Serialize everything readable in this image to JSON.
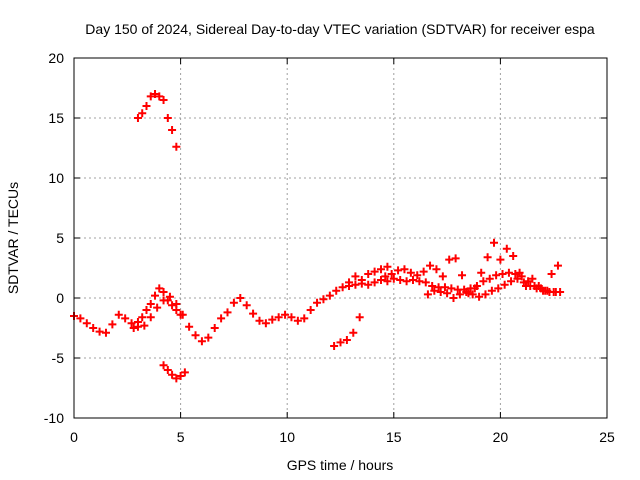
{
  "chart_data": {
    "type": "scatter",
    "title": "Day 150 of 2024, Sidereal Day-to-day VTEC variation (SDTVAR) for receiver espa",
    "xlabel": "GPS time / hours",
    "ylabel": "SDTVAR / TECUs",
    "xlim": [
      0,
      25
    ],
    "ylim": [
      -10,
      20
    ],
    "xticks": [
      0,
      5,
      10,
      15,
      20,
      25
    ],
    "yticks": [
      -10,
      -5,
      0,
      5,
      10,
      15,
      20
    ],
    "xtick_labels": [
      "0",
      "5",
      "10",
      "15",
      "20",
      "25"
    ],
    "ytick_labels": [
      "-10",
      "-5",
      "0",
      "5",
      "10",
      "15",
      "20"
    ],
    "grid": true,
    "marker": "plus",
    "color": "#ff0000",
    "series": [
      {
        "name": "main-track",
        "x": [
          0.0,
          0.3,
          0.6,
          0.9,
          1.2,
          1.5,
          1.8,
          2.1,
          2.4,
          2.7,
          3.0,
          3.3,
          3.6,
          3.9,
          4.2,
          4.5,
          4.8,
          5.1,
          5.4,
          5.7,
          6.0,
          6.3,
          6.6,
          6.9,
          7.2,
          7.5,
          7.8,
          8.1,
          8.4,
          8.7,
          9.0,
          9.3,
          9.6,
          9.9,
          10.2,
          10.5,
          10.8,
          11.1,
          11.4,
          11.7,
          12.0,
          12.3,
          12.6,
          12.9,
          13.2,
          13.5,
          13.8,
          14.1,
          14.4,
          14.7,
          15.0,
          15.3,
          15.6,
          15.9,
          16.2,
          16.5,
          16.8,
          17.1,
          17.4,
          17.7,
          18.0,
          18.3,
          18.6,
          18.9,
          19.2,
          19.5,
          19.8,
          20.1,
          20.4,
          20.7,
          21.0,
          21.3,
          21.6,
          21.9,
          22.2,
          22.5,
          22.8
        ],
        "y": [
          -1.5,
          -1.7,
          -2.1,
          -2.5,
          -2.8,
          -2.9,
          -2.2,
          -1.4,
          -1.7,
          -2.1,
          -2.4,
          -2.3,
          -1.6,
          -0.8,
          -0.2,
          0.1,
          -0.5,
          -1.4,
          -2.4,
          -3.1,
          -3.6,
          -3.3,
          -2.5,
          -1.7,
          -1.2,
          -0.4,
          0.0,
          -0.6,
          -1.3,
          -1.9,
          -2.1,
          -1.8,
          -1.6,
          -1.4,
          -1.6,
          -1.9,
          -1.7,
          -1.0,
          -0.4,
          -0.1,
          0.2,
          0.6,
          0.9,
          1.0,
          1.1,
          1.2,
          1.1,
          1.3,
          1.5,
          1.4,
          1.6,
          1.5,
          1.4,
          1.5,
          1.4,
          1.3,
          1.0,
          0.9,
          0.9,
          0.8,
          0.7,
          0.7,
          0.8,
          1.0,
          1.4,
          1.6,
          1.9,
          2.0,
          2.1,
          2.0,
          1.8,
          1.4,
          1.0,
          0.8,
          0.6,
          0.5,
          0.5
        ]
      },
      {
        "name": "upper-track",
        "x": [
          14.6,
          14.9,
          15.2,
          15.5,
          15.8,
          16.1,
          16.4,
          16.7,
          17.0,
          17.3,
          17.6,
          17.9,
          18.2,
          18.5,
          18.8,
          19.1,
          19.4,
          19.7,
          20.0,
          20.3,
          20.6,
          20.9,
          21.2,
          21.5,
          21.8,
          22.1,
          22.4,
          22.7
        ],
        "y": [
          1.8,
          2.0,
          2.3,
          2.4,
          2.1,
          1.9,
          2.2,
          2.7,
          2.4,
          1.8,
          3.2,
          3.3,
          1.9,
          0.4,
          0.8,
          2.1,
          3.4,
          4.6,
          3.2,
          4.1,
          3.5,
          2.1,
          1.0,
          1.6,
          1.0,
          0.6,
          2.0,
          2.7
        ]
      },
      {
        "name": "lower-track",
        "x": [
          16.6,
          16.9,
          17.2,
          17.5,
          17.8,
          18.1,
          18.4,
          18.7,
          19.0,
          19.3,
          19.6,
          19.9,
          20.2,
          20.5,
          20.8,
          21.1,
          21.4,
          21.7,
          22.0,
          22.3,
          22.6
        ],
        "y": [
          0.3,
          0.6,
          0.5,
          0.4,
          0.0,
          0.3,
          0.5,
          0.3,
          0.1,
          0.3,
          0.6,
          0.8,
          1.1,
          1.4,
          1.6,
          1.3,
          1.0,
          0.8,
          0.6,
          0.5,
          0.5
        ]
      },
      {
        "name": "segment-a",
        "x": [
          12.9,
          13.2,
          13.5,
          13.8,
          14.1,
          14.4,
          14.7
        ],
        "y": [
          1.3,
          1.8,
          1.5,
          2.0,
          2.2,
          2.4,
          2.6
        ]
      },
      {
        "name": "segment-b",
        "x": [
          3.0,
          3.2,
          3.4,
          3.6,
          3.8,
          4.0,
          4.2,
          4.4,
          4.6,
          4.8
        ],
        "y": [
          15.0,
          15.4,
          16.0,
          16.8,
          17.0,
          16.8,
          16.5,
          15.0,
          14.0,
          12.6
        ]
      },
      {
        "name": "segment-c",
        "x": [
          2.8,
          3.0,
          3.2,
          3.4,
          3.6,
          3.8,
          4.0,
          4.2,
          4.4,
          4.6,
          4.8,
          5.0
        ],
        "y": [
          -2.5,
          -2.0,
          -1.6,
          -1.0,
          -0.5,
          0.2,
          0.8,
          0.5,
          -0.2,
          -0.6,
          -1.0,
          -1.4
        ]
      },
      {
        "name": "segment-d",
        "x": [
          4.2,
          4.4,
          4.6,
          4.8,
          5.0,
          5.2
        ],
        "y": [
          -5.6,
          -6.0,
          -6.4,
          -6.7,
          -6.5,
          -6.2
        ]
      },
      {
        "name": "segment-e",
        "x": [
          12.2,
          12.5,
          12.8,
          13.1,
          13.4
        ],
        "y": [
          -4.0,
          -3.7,
          -3.5,
          -2.9,
          -1.6
        ]
      }
    ]
  }
}
